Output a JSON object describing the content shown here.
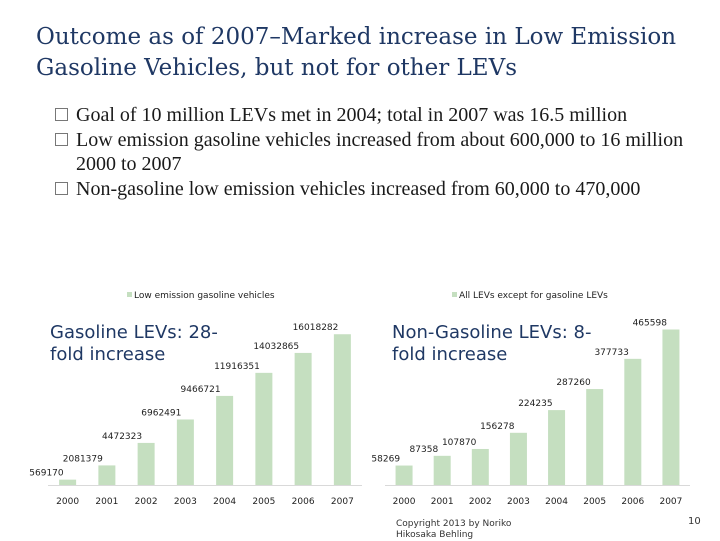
{
  "title": "Outcome as of 2007–Marked increase in Low Emission Gasoline Vehicles, but not for other LEVs",
  "bullets": [
    "Goal of 10 million LEVs met in 2004; total in 2007 was 16.5 million",
    "Low emission gasoline vehicles increased from about 600,000 to 16 million 2000 to 2007",
    "Non-gasoline low emission vehicles increased from 60,000 to 470,000"
  ],
  "left_callout": "Gasoline LEVs: 28-fold increase",
  "right_callout": "Non-Gasoline LEVs: 8-fold increase",
  "copyright": "Copyright 2013 by Noriko Hikosaka Behling",
  "page_number": "10",
  "colors": {
    "bar": "#c5dfc0",
    "title": "#1f3864"
  },
  "chart_data": [
    {
      "type": "bar",
      "legend": "Low emission gasoline vehicles",
      "categories": [
        "2000",
        "2001",
        "2002",
        "2003",
        "2004",
        "2005",
        "2006",
        "2007"
      ],
      "values": [
        569170,
        2081379,
        4472323,
        6962491,
        9466721,
        11916351,
        14032865,
        16018282
      ],
      "labels": [
        "569170",
        "2081379",
        "4472323",
        "6962491",
        "9466721",
        "11916351",
        "14032865",
        "16018282"
      ],
      "ylim": [
        0,
        17000000
      ]
    },
    {
      "type": "bar",
      "legend": "All LEVs except for gasoline LEVs",
      "categories": [
        "2000",
        "2001",
        "2002",
        "2003",
        "2004",
        "2005",
        "2006",
        "2007"
      ],
      "values": [
        58269,
        87358,
        107870,
        156278,
        224235,
        287260,
        377733,
        465598
      ],
      "labels": [
        "58269",
        "87358",
        "107870",
        "156278",
        "224235",
        "287260",
        "377733",
        "465598"
      ],
      "ylim": [
        0,
        500000
      ]
    }
  ]
}
